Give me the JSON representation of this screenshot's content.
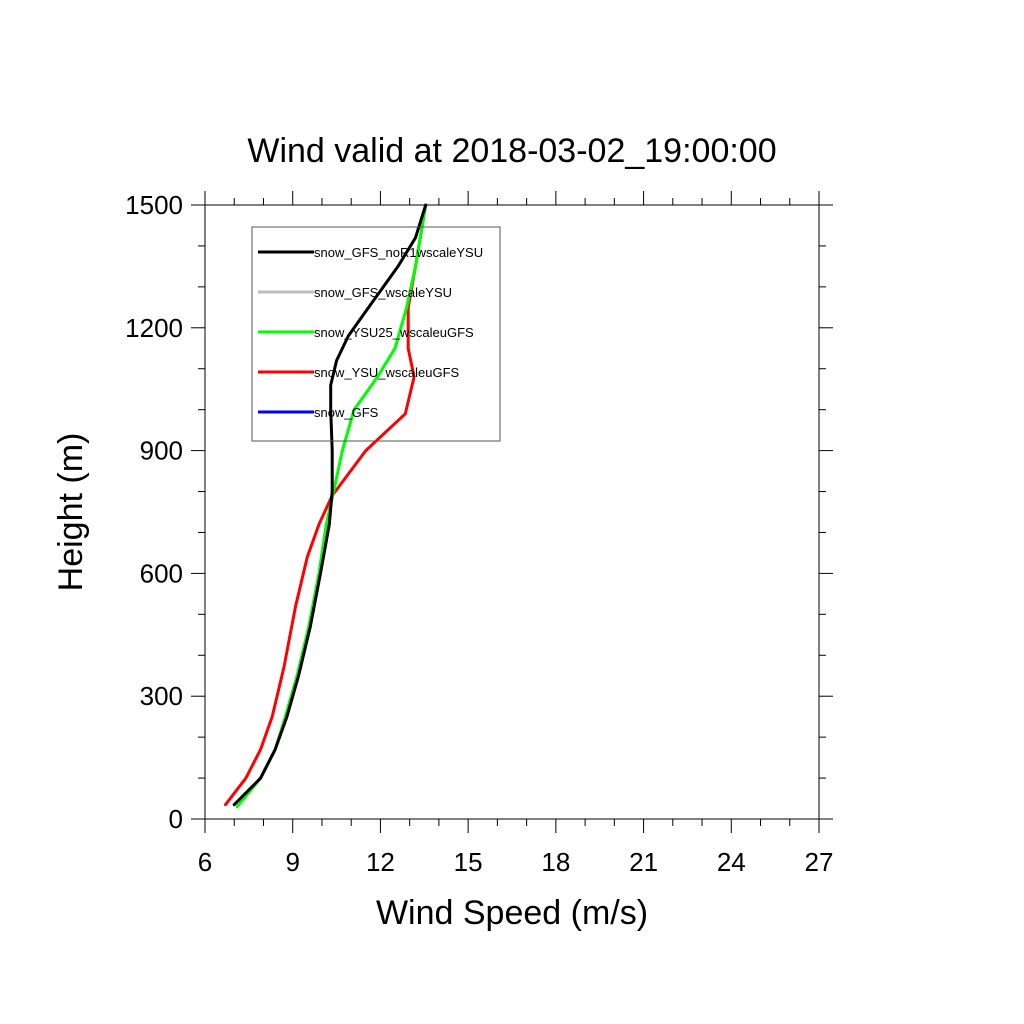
{
  "chart_data": {
    "type": "line",
    "title": "Wind valid at 2018-03-02_19:00:00",
    "xlabel": "Wind Speed (m/s)",
    "ylabel": "Height (m)",
    "xlim": [
      6,
      27
    ],
    "ylim": [
      0,
      1500
    ],
    "xticks": [
      6,
      9,
      12,
      15,
      18,
      21,
      24,
      27
    ],
    "yticks": [
      0,
      300,
      600,
      900,
      1200,
      1500
    ],
    "xticklabels": [
      "6",
      "9",
      "12",
      "15",
      "18",
      "21",
      "24",
      "27"
    ],
    "yticklabels": [
      "0",
      "300",
      "600",
      "900",
      "1200",
      "1500"
    ],
    "grid": false,
    "legend_position": "top-left",
    "series": [
      {
        "name": "snow_GFS_noR1wscaleYSU",
        "color": "#000000",
        "points": [
          [
            7.0,
            35
          ],
          [
            7.9,
            100
          ],
          [
            8.4,
            170
          ],
          [
            8.8,
            250
          ],
          [
            9.2,
            350
          ],
          [
            9.6,
            470
          ],
          [
            9.95,
            600
          ],
          [
            10.25,
            720
          ],
          [
            10.35,
            800
          ],
          [
            10.35,
            900
          ],
          [
            10.3,
            1000
          ],
          [
            10.3,
            1060
          ],
          [
            10.5,
            1120
          ],
          [
            10.9,
            1180
          ],
          [
            11.6,
            1250
          ],
          [
            12.6,
            1350
          ],
          [
            13.2,
            1420
          ],
          [
            13.55,
            1500
          ]
        ]
      },
      {
        "name": "snow_GFS_wscaleYSU",
        "color": "#bdbdbd",
        "points": [
          [
            7.1,
            30
          ],
          [
            7.9,
            100
          ],
          [
            8.4,
            170
          ],
          [
            8.75,
            250
          ],
          [
            9.15,
            350
          ],
          [
            9.55,
            470
          ],
          [
            9.9,
            600
          ],
          [
            10.15,
            720
          ],
          [
            10.4,
            800
          ],
          [
            10.7,
            900
          ],
          [
            11.1,
            1000
          ],
          [
            11.9,
            1080
          ],
          [
            12.5,
            1150
          ],
          [
            12.9,
            1250
          ],
          [
            13.2,
            1350
          ],
          [
            13.55,
            1500
          ]
        ]
      },
      {
        "name": "snow_YSU25_wscaleuGFS",
        "color": "#00ff00",
        "points": [
          [
            7.1,
            30
          ],
          [
            7.9,
            100
          ],
          [
            8.4,
            170
          ],
          [
            8.75,
            250
          ],
          [
            9.15,
            350
          ],
          [
            9.55,
            470
          ],
          [
            9.9,
            600
          ],
          [
            10.15,
            720
          ],
          [
            10.4,
            800
          ],
          [
            10.7,
            900
          ],
          [
            11.1,
            1000
          ],
          [
            11.9,
            1080
          ],
          [
            12.5,
            1150
          ],
          [
            12.9,
            1250
          ],
          [
            13.2,
            1350
          ],
          [
            13.55,
            1500
          ]
        ]
      },
      {
        "name": "snow_YSU_wscaleuGFS",
        "color": "#ff0000",
        "points": [
          [
            6.7,
            35
          ],
          [
            7.4,
            100
          ],
          [
            7.9,
            170
          ],
          [
            8.3,
            250
          ],
          [
            8.7,
            370
          ],
          [
            9.1,
            520
          ],
          [
            9.5,
            640
          ],
          [
            9.9,
            720
          ],
          [
            10.35,
            790
          ],
          [
            11.5,
            900
          ],
          [
            12.85,
            990
          ],
          [
            13.15,
            1080
          ],
          [
            12.95,
            1150
          ],
          [
            12.95,
            1250
          ],
          [
            13.2,
            1350
          ],
          [
            13.55,
            1500
          ]
        ]
      },
      {
        "name": "snow_GFS",
        "color": "#0000ff",
        "points": []
      }
    ]
  }
}
